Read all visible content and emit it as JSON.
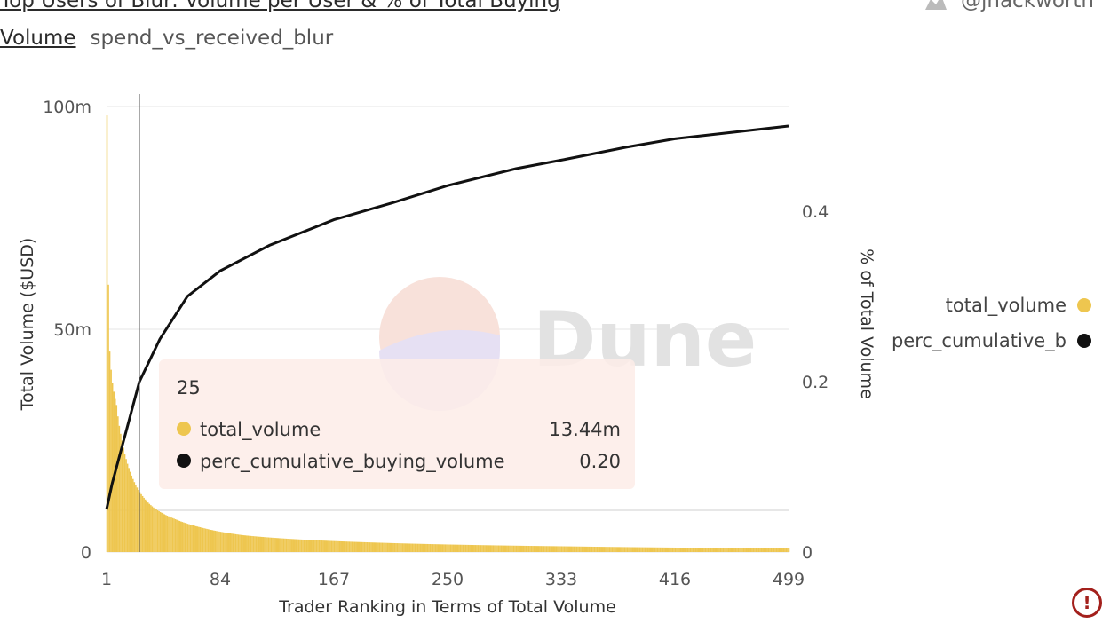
{
  "header": {
    "title_line1": "Top Users of Blur: Volume per User & % of Total Buying",
    "title_line2": "Volume",
    "query_name": "spend_vs_received_blur",
    "author": "@jhackworth"
  },
  "colors": {
    "volume": "#eec64f",
    "cumulative": "#111111",
    "tooltip_bg": "#fdece8",
    "alert": "#a3201c"
  },
  "watermark": {
    "text": "Dune"
  },
  "tooltip": {
    "rank": "25",
    "row1_name": "total_volume",
    "row1_value": "13.44m",
    "row2_name": "perc_cumulative_buying_volume",
    "row2_value": "0.20"
  },
  "legend": {
    "item1": "total_volume",
    "item2": "perc_cumulative_b"
  },
  "alert_icon": "exclamation-circle-icon",
  "chart_data": {
    "type": "bar",
    "x_label": "Trader Ranking in Terms of Total Volume",
    "x_ticks": [
      "1",
      "84",
      "167",
      "250",
      "333",
      "416",
      "499"
    ],
    "x_range": [
      1,
      499
    ],
    "y_left_label": "Total Volume ($USD)",
    "y_left_ticks": [
      "0",
      "50m",
      "100m"
    ],
    "y_left_range": [
      0,
      100000000
    ],
    "y_right_label": "% of Total Volume",
    "y_right_ticks": [
      "0",
      "0.2",
      "0.4"
    ],
    "y_right_range": [
      0,
      0.4
    ],
    "series": [
      {
        "name": "total_volume",
        "axis": "left",
        "type": "bar",
        "color": "#eec64f",
        "model": "power-law decay by rank",
        "points": [
          [
            1,
            98000000
          ],
          [
            2,
            60000000
          ],
          [
            3,
            45000000
          ],
          [
            5,
            38000000
          ],
          [
            8,
            33000000
          ],
          [
            12,
            25000000
          ],
          [
            18,
            18000000
          ],
          [
            25,
            13440000
          ],
          [
            35,
            10000000
          ],
          [
            50,
            7500000
          ],
          [
            70,
            5500000
          ],
          [
            100,
            3800000
          ],
          [
            150,
            2700000
          ],
          [
            200,
            2100000
          ],
          [
            250,
            1700000
          ],
          [
            333,
            1300000
          ],
          [
            416,
            1000000
          ],
          [
            499,
            800000
          ]
        ]
      },
      {
        "name": "perc_cumulative_buying_volume",
        "axis": "right",
        "type": "line",
        "color": "#111111",
        "points": [
          [
            1,
            0.05
          ],
          [
            5,
            0.08
          ],
          [
            10,
            0.11
          ],
          [
            15,
            0.14
          ],
          [
            25,
            0.2
          ],
          [
            40,
            0.25
          ],
          [
            60,
            0.3
          ],
          [
            84,
            0.33
          ],
          [
            120,
            0.36
          ],
          [
            167,
            0.39
          ],
          [
            210,
            0.41
          ],
          [
            250,
            0.43
          ],
          [
            300,
            0.45
          ],
          [
            333,
            0.46
          ],
          [
            380,
            0.475
          ],
          [
            416,
            0.485
          ],
          [
            460,
            0.493
          ],
          [
            499,
            0.5
          ]
        ]
      }
    ],
    "crosshair_x": 25,
    "grid": true,
    "legend_position": "right"
  }
}
